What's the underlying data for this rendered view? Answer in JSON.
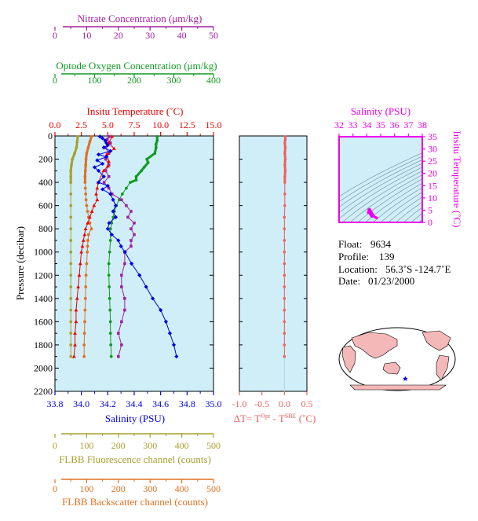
{
  "colors": {
    "nitrate": "#a0209f",
    "oxygen": "#119a22",
    "temperature": "#ee0000",
    "salinity": "#0000dd",
    "fluorescence": "#a8a030",
    "backscatter": "#e07020",
    "delta_t": "#f06060",
    "ts_axis": "#ee00ee",
    "panel_bg": "#d0eef8",
    "land": "#f4b8b8",
    "ocean": "#ffffff"
  },
  "chart_data": [
    {
      "type": "line",
      "panel": "main-profile",
      "ylabel": "Pressure (decibar)",
      "ylim": [
        2200,
        0
      ],
      "yticks": [
        0,
        200,
        400,
        600,
        800,
        1000,
        1200,
        1400,
        1600,
        1800,
        2000,
        2200
      ],
      "axes": [
        {
          "key": "nitrate",
          "label": "Nitrate Concentration (μm/kg)",
          "ticks": [
            0,
            10,
            20,
            30,
            40,
            50
          ],
          "xlim": [
            0,
            50
          ]
        },
        {
          "key": "oxygen",
          "label": "Optode Oxygen Concentration (μm/kg)",
          "ticks": [
            0,
            100,
            200,
            300,
            400
          ],
          "xlim": [
            0,
            400
          ]
        },
        {
          "key": "temperature",
          "label": "Insitu Temperature (˚C)",
          "ticks": [
            "0.0",
            "2.5",
            "5.0",
            "7.5",
            "10.0",
            "12.5",
            "15.0"
          ],
          "xlim": [
            0,
            15
          ]
        },
        {
          "key": "salinity",
          "label": "Salinity (PSU)",
          "ticks": [
            "33.8",
            "34.0",
            "34.2",
            "34.4",
            "34.6",
            "34.8",
            "35.0"
          ],
          "xlim": [
            33.8,
            35.0
          ]
        },
        {
          "key": "fluorescence",
          "label": "FLBB Fluorescence channel (counts)",
          "ticks": [
            0,
            100,
            200,
            300,
            400,
            500
          ],
          "xlim": [
            0,
            500
          ]
        },
        {
          "key": "backscatter",
          "label": "FLBB Backscatter channel (counts)",
          "ticks": [
            0,
            100,
            200,
            300,
            400,
            500
          ],
          "xlim": [
            0,
            500
          ]
        }
      ],
      "series": [
        {
          "key": "nitrate",
          "marker": "square",
          "points": [
            [
              17,
              5
            ],
            [
              16.5,
              30
            ],
            [
              17.5,
              60
            ],
            [
              16,
              100
            ],
            [
              17,
              150
            ],
            [
              16,
              200
            ],
            [
              17,
              250
            ],
            [
              16,
              300
            ],
            [
              17,
              350
            ],
            [
              15.5,
              400
            ],
            [
              17,
              450
            ],
            [
              18,
              500
            ],
            [
              21,
              550
            ],
            [
              22.5,
              600
            ],
            [
              24,
              650
            ],
            [
              23,
              700
            ],
            [
              25,
              750
            ],
            [
              24,
              800
            ],
            [
              25,
              850
            ],
            [
              24,
              900
            ],
            [
              24,
              950
            ],
            [
              22,
              1000
            ],
            [
              22,
              1100
            ],
            [
              21,
              1200
            ],
            [
              21,
              1300
            ],
            [
              22,
              1400
            ],
            [
              22,
              1500
            ],
            [
              21,
              1600
            ],
            [
              20,
              1700
            ],
            [
              21,
              1800
            ],
            [
              20,
              1900
            ]
          ]
        },
        {
          "key": "oxygen",
          "marker": "circle",
          "points": [
            [
              258,
              5
            ],
            [
              258,
              40
            ],
            [
              255,
              70
            ],
            [
              255,
              100
            ],
            [
              252,
              150
            ],
            [
              232,
              200
            ],
            [
              235,
              230
            ],
            [
              225,
              270
            ],
            [
              218,
              300
            ],
            [
              205,
              350
            ],
            [
              205,
              380
            ],
            [
              190,
              400
            ],
            [
              180,
              450
            ],
            [
              170,
              500
            ],
            [
              162,
              550
            ],
            [
              155,
              600
            ],
            [
              150,
              650
            ],
            [
              147,
              700
            ],
            [
              143,
              750
            ],
            [
              140,
              800
            ],
            [
              140,
              900
            ],
            [
              138,
              1000
            ],
            [
              136,
              1100
            ],
            [
              136,
              1200
            ],
            [
              137,
              1300
            ],
            [
              138,
              1400
            ],
            [
              139,
              1500
            ],
            [
              140,
              1600
            ],
            [
              140,
              1700
            ],
            [
              141,
              1800
            ],
            [
              142,
              1900
            ]
          ]
        },
        {
          "key": "temperature",
          "marker": "triangle",
          "points": [
            [
              5.4,
              5
            ],
            [
              5.1,
              60
            ],
            [
              5.6,
              110
            ],
            [
              4.9,
              160
            ],
            [
              5.1,
              220
            ],
            [
              5.0,
              260
            ],
            [
              4.6,
              300
            ],
            [
              4.1,
              400
            ],
            [
              4.0,
              450
            ],
            [
              3.9,
              500
            ],
            [
              4.0,
              550
            ],
            [
              3.7,
              600
            ],
            [
              3.5,
              650
            ],
            [
              3.3,
              700
            ],
            [
              3.1,
              750
            ],
            [
              2.9,
              800
            ],
            [
              2.8,
              850
            ],
            [
              2.7,
              900
            ],
            [
              2.6,
              950
            ],
            [
              2.5,
              1000
            ],
            [
              2.4,
              1100
            ],
            [
              2.3,
              1200
            ],
            [
              2.2,
              1300
            ],
            [
              2.1,
              1400
            ],
            [
              2.0,
              1500
            ],
            [
              2.0,
              1600
            ],
            [
              1.9,
              1700
            ],
            [
              1.9,
              1800
            ],
            [
              1.8,
              1900
            ]
          ]
        },
        {
          "key": "salinity",
          "marker": "diamond",
          "points": [
            [
              34.14,
              5
            ],
            [
              34.16,
              20
            ],
            [
              34.18,
              40
            ],
            [
              34.19,
              60
            ],
            [
              34.2,
              80
            ],
            [
              34.17,
              100
            ],
            [
              34.22,
              130
            ],
            [
              34.13,
              160
            ],
            [
              34.19,
              180
            ],
            [
              34.12,
              210
            ],
            [
              34.16,
              240
            ],
            [
              34.1,
              270
            ],
            [
              34.13,
              300
            ],
            [
              34.17,
              350
            ],
            [
              34.13,
              400
            ],
            [
              34.2,
              430
            ],
            [
              34.16,
              460
            ],
            [
              34.22,
              500
            ],
            [
              34.24,
              550
            ],
            [
              34.26,
              600
            ],
            [
              34.24,
              650
            ],
            [
              34.26,
              700
            ],
            [
              34.21,
              750
            ],
            [
              34.2,
              800
            ],
            [
              34.23,
              850
            ],
            [
              34.28,
              900
            ],
            [
              34.3,
              950
            ],
            [
              34.33,
              1000
            ],
            [
              34.38,
              1100
            ],
            [
              34.44,
              1200
            ],
            [
              34.49,
              1300
            ],
            [
              34.54,
              1400
            ],
            [
              34.6,
              1500
            ],
            [
              34.64,
              1600
            ],
            [
              34.67,
              1700
            ],
            [
              34.7,
              1800
            ],
            [
              34.72,
              1900
            ]
          ]
        },
        {
          "key": "fluorescence",
          "marker": "circle",
          "points": [
            [
              72,
              5
            ],
            [
              70,
              50
            ],
            [
              68,
              100
            ],
            [
              62,
              150
            ],
            [
              55,
              200
            ],
            [
              52,
              250
            ],
            [
              50,
              300
            ],
            [
              50,
              350
            ],
            [
              50,
              400
            ],
            [
              50,
              500
            ],
            [
              50,
              600
            ],
            [
              50,
              700
            ],
            [
              50,
              800
            ],
            [
              50,
              900
            ],
            [
              50,
              1000
            ],
            [
              50,
              1100
            ],
            [
              50,
              1200
            ],
            [
              50,
              1300
            ],
            [
              50,
              1400
            ],
            [
              50,
              1500
            ],
            [
              50,
              1600
            ],
            [
              50,
              1700
            ],
            [
              50,
              1800
            ],
            [
              50,
              1900
            ]
          ]
        },
        {
          "key": "backscatter",
          "marker": "circle",
          "points": [
            [
              115,
              5
            ],
            [
              110,
              50
            ],
            [
              105,
              100
            ],
            [
              100,
              150
            ],
            [
              98,
              200
            ],
            [
              97,
              250
            ],
            [
              96,
              300
            ],
            [
              95,
              350
            ],
            [
              95,
              400
            ],
            [
              96,
              450
            ],
            [
              97,
              500
            ],
            [
              98,
              550
            ],
            [
              100,
              600
            ],
            [
              103,
              650
            ],
            [
              106,
              700
            ],
            [
              110,
              750
            ],
            [
              115,
              800
            ],
            [
              106,
              850
            ],
            [
              104,
              900
            ],
            [
              103,
              950
            ],
            [
              102,
              1000
            ],
            [
              100,
              1100
            ],
            [
              98,
              1200
            ],
            [
              97,
              1300
            ],
            [
              96,
              1400
            ],
            [
              95,
              1500
            ],
            [
              94,
              1600
            ],
            [
              93,
              1700
            ],
            [
              92,
              1800
            ],
            [
              92,
              1900
            ]
          ]
        }
      ]
    },
    {
      "type": "line",
      "panel": "delta-t",
      "xlabel_prefix": "ΔT= T",
      "xlabel_sup1": "Opt",
      "xlabel_mid": " - T",
      "xlabel_sup2": "SBE",
      "xlabel_suffix": " (˚C)",
      "xlim": [
        -1.0,
        0.5
      ],
      "xticks": [
        "-1.0",
        "-0.5",
        "0.0",
        "0.5"
      ],
      "ylim": [
        2200,
        0
      ],
      "points": [
        [
          0.02,
          5
        ],
        [
          0.02,
          30
        ],
        [
          0.01,
          60
        ],
        [
          0.02,
          100
        ],
        [
          0.01,
          150
        ],
        [
          0.02,
          200
        ],
        [
          0.01,
          250
        ],
        [
          0.02,
          300
        ],
        [
          0.01,
          350
        ],
        [
          0.01,
          400
        ],
        [
          0.01,
          500
        ],
        [
          0.01,
          600
        ],
        [
          0.0,
          700
        ],
        [
          0.0,
          800
        ],
        [
          0.0,
          900
        ],
        [
          0.0,
          1000
        ],
        [
          0.0,
          1100
        ],
        [
          0.0,
          1200
        ],
        [
          0.0,
          1300
        ],
        [
          0.0,
          1400
        ],
        [
          0.0,
          1500
        ],
        [
          0.0,
          1600
        ],
        [
          0.0,
          1700
        ],
        [
          0.0,
          1800
        ],
        [
          0.0,
          1900
        ]
      ]
    },
    {
      "type": "scatter",
      "panel": "t-s-diagram",
      "xlabel": "Salinity (PSU)",
      "ylabel": "Insitu Temperature (˚C)",
      "xlim": [
        32,
        38
      ],
      "ylim": [
        0,
        35
      ],
      "xticks": [
        "32",
        "33",
        "34",
        "35",
        "36",
        "37",
        "38"
      ],
      "yticks": [
        "0",
        "5",
        "10",
        "15",
        "20",
        "25",
        "30",
        "35"
      ],
      "points": [
        [
          34.1,
          4.0
        ],
        [
          34.15,
          4.6
        ],
        [
          34.18,
          5.0
        ],
        [
          34.2,
          5.4
        ],
        [
          34.22,
          5.2
        ],
        [
          34.25,
          4.9
        ],
        [
          34.3,
          4.5
        ],
        [
          34.35,
          4.0
        ],
        [
          34.4,
          3.5
        ],
        [
          34.45,
          3.0
        ],
        [
          34.5,
          2.6
        ],
        [
          34.55,
          2.3
        ],
        [
          34.6,
          2.1
        ],
        [
          34.65,
          2.0
        ],
        [
          34.7,
          1.9
        ],
        [
          34.72,
          1.8
        ],
        [
          34.22,
          3.7
        ],
        [
          34.26,
          3.2
        ],
        [
          34.33,
          2.6
        ],
        [
          34.38,
          2.4
        ],
        [
          34.14,
          5.2
        ],
        [
          34.12,
          4.4
        ]
      ]
    }
  ],
  "info": {
    "float_label": "Float:",
    "float_value": "9634",
    "profile_label": "Profile:",
    "profile_value": "139",
    "location_label": "Location:",
    "location_value": "56.3˚S  -124.7˚E",
    "date_label": "Date:",
    "date_value": "01/23/2000"
  },
  "map": {
    "marker_lat": -56.3,
    "marker_lon": -124.7
  }
}
